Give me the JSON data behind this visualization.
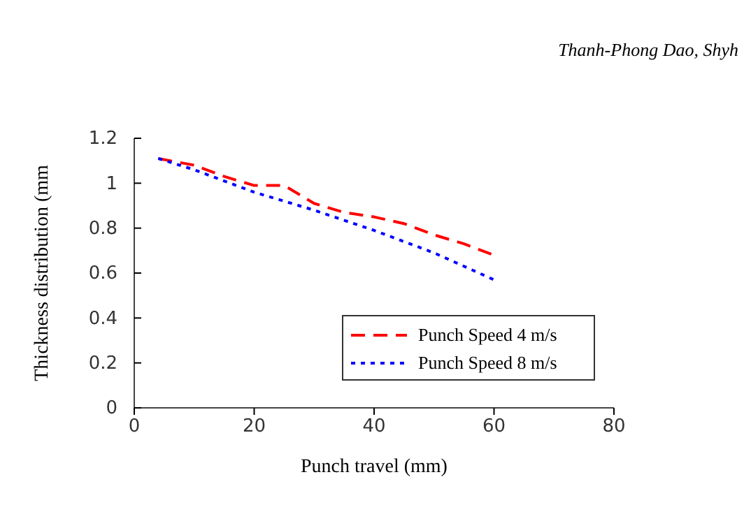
{
  "chart_data": {
    "type": "line",
    "xlabel": "Punch travel (mm)",
    "ylabel": "Thickness distribution (mm",
    "annotations": [
      "Thanh-Phong Dao, Shyh"
    ],
    "xlim": [
      0,
      80
    ],
    "xticks": [
      0,
      20,
      40,
      60,
      80
    ],
    "ylim": [
      0,
      1.2
    ],
    "yticks": [
      0,
      0.2,
      0.4,
      0.6,
      0.8,
      1,
      1.2
    ],
    "grid": false,
    "legend": "bottom right",
    "marker": "none",
    "series": [
      {
        "name": "Punch Speed 4 m/s",
        "color": "#ff0000",
        "line_style": "dashed",
        "x": [
          4,
          10,
          15,
          20,
          25,
          30,
          35,
          40,
          45,
          50,
          55,
          60
        ],
        "values": [
          1.11,
          1.08,
          1.03,
          0.99,
          0.99,
          0.91,
          0.87,
          0.85,
          0.82,
          0.77,
          0.73,
          0.68
        ]
      },
      {
        "name": "Punch Speed 8 m/s",
        "color": "#0000ff",
        "line_style": "dotted",
        "x": [
          4,
          10,
          20,
          30,
          40,
          50,
          60
        ],
        "values": [
          1.11,
          1.06,
          0.96,
          0.88,
          0.79,
          0.69,
          0.57
        ]
      }
    ]
  }
}
